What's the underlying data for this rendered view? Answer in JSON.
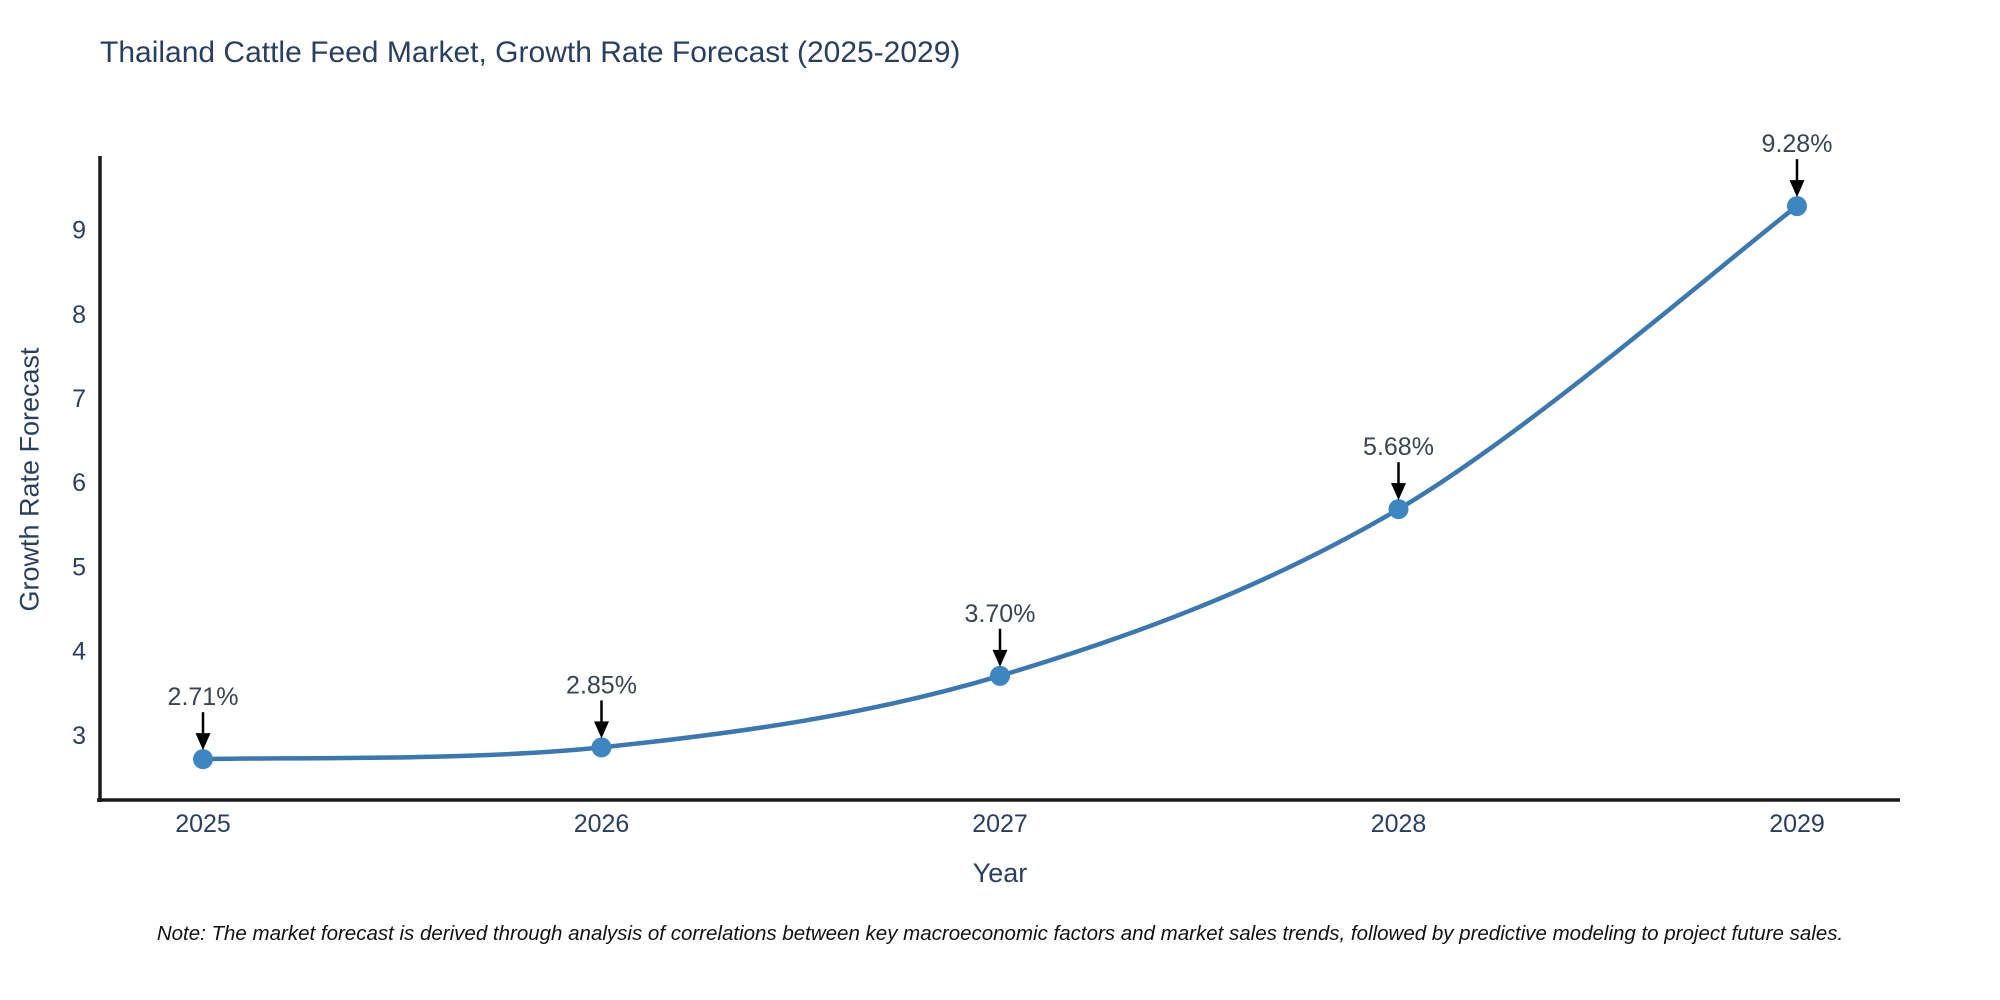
{
  "title": "Thailand Cattle Feed Market, Growth Rate Forecast (2025-2029)",
  "note": "Note: The market forecast is derived through analysis of correlations between key macroeconomic factors and market sales trends, followed by predictive modeling to project future sales.",
  "chart_data": {
    "type": "line",
    "title": "Thailand Cattle Feed Market, Growth Rate Forecast (2025-2029)",
    "xlabel": "Year",
    "ylabel": "Growth Rate Forecast",
    "categories": [
      2025,
      2026,
      2027,
      2028,
      2029
    ],
    "values": [
      2.71,
      2.85,
      3.7,
      5.68,
      9.28
    ],
    "point_labels": [
      "2.71%",
      "2.85%",
      "3.70%",
      "5.68%",
      "9.28%"
    ],
    "yticks": [
      3,
      4,
      5,
      6,
      7,
      8,
      9
    ],
    "ylim": [
      2.225,
      9.875
    ],
    "grid": false,
    "legend": "none",
    "line_shape": "spline",
    "annotation_style": "black-arrow-down-to-point",
    "colors": {
      "line": "#3c78ae",
      "marker": "#3f86c0",
      "axis": "#1a1a1a",
      "text": "#2a3f5f",
      "annotation_text": "#3a4450",
      "annotation_arrow": "#000000",
      "background": "#ffffff"
    }
  }
}
